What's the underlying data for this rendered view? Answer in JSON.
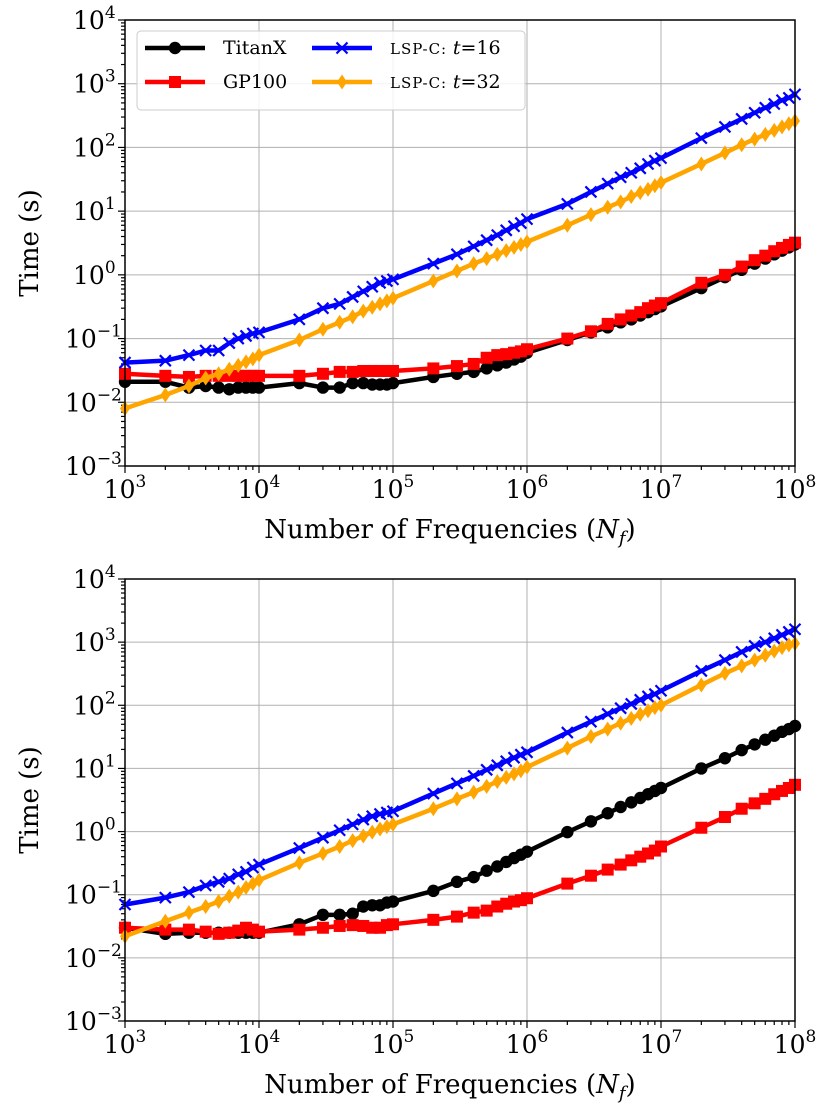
{
  "colors": {
    "titanx": "#000000",
    "gp100": "#ff0000",
    "lsp16": "#0000ff",
    "lsp32": "#ffa500"
  },
  "legend": {
    "titanx": "TitanX",
    "gp100": "GP100",
    "lsp16": "LSP-C: t=16",
    "lsp32": "LSP-C: t=32"
  },
  "chart_data": [
    {
      "type": "line",
      "title": "",
      "xlabel": "Number of Frequencies (N_f)",
      "ylabel": "Time (s)",
      "xscale": "log",
      "yscale": "log",
      "xlim": [
        1000,
        100000000
      ],
      "ylim": [
        0.001,
        10000
      ],
      "x_ticks": [
        "10^3",
        "10^4",
        "10^5",
        "10^6",
        "10^7",
        "10^8"
      ],
      "y_ticks": [
        "10^-3",
        "10^-2",
        "10^-1",
        "10^0",
        "10^1",
        "10^2",
        "10^3",
        "10^4"
      ],
      "grid": true,
      "legend_position": "top-left",
      "x": [
        1000,
        2000,
        3000,
        4000,
        5000,
        6000,
        7000,
        8000,
        9000,
        10000,
        20000,
        30000,
        40000,
        50000,
        60000,
        70000,
        80000,
        90000,
        100000,
        200000,
        300000,
        400000,
        500000,
        600000,
        700000,
        800000,
        900000,
        1000000,
        2000000,
        3000000,
        4000000,
        5000000,
        6000000,
        7000000,
        8000000,
        9000000,
        10000000,
        20000000,
        30000000,
        40000000,
        50000000,
        60000000,
        70000000,
        80000000,
        90000000,
        100000000
      ],
      "series": [
        {
          "name": "TitanX",
          "key": "titanx",
          "marker": "circle",
          "values": [
            0.021,
            0.021,
            0.017,
            0.018,
            0.017,
            0.016,
            0.017,
            0.017,
            0.017,
            0.017,
            0.02,
            0.017,
            0.017,
            0.02,
            0.02,
            0.019,
            0.019,
            0.019,
            0.02,
            0.025,
            0.028,
            0.03,
            0.034,
            0.038,
            0.042,
            0.047,
            0.052,
            0.06,
            0.095,
            0.125,
            0.15,
            0.18,
            0.2,
            0.23,
            0.26,
            0.29,
            0.32,
            0.62,
            0.92,
            1.2,
            1.5,
            1.8,
            2.1,
            2.4,
            2.7,
            3.0
          ]
        },
        {
          "name": "GP100",
          "key": "gp100",
          "marker": "square",
          "values": [
            0.028,
            0.026,
            0.025,
            0.026,
            0.026,
            0.026,
            0.026,
            0.026,
            0.026,
            0.026,
            0.026,
            0.028,
            0.03,
            0.03,
            0.031,
            0.031,
            0.031,
            0.031,
            0.031,
            0.034,
            0.037,
            0.04,
            0.05,
            0.055,
            0.057,
            0.06,
            0.063,
            0.068,
            0.1,
            0.13,
            0.17,
            0.2,
            0.23,
            0.26,
            0.3,
            0.33,
            0.36,
            0.75,
            1.0,
            1.35,
            1.7,
            2.0,
            2.35,
            2.65,
            2.95,
            3.2
          ]
        },
        {
          "name": "LSP-C: t=16",
          "key": "lsp16",
          "marker": "x",
          "values": [
            0.042,
            0.045,
            0.055,
            0.065,
            0.065,
            0.085,
            0.1,
            0.11,
            0.12,
            0.125,
            0.2,
            0.3,
            0.35,
            0.45,
            0.55,
            0.65,
            0.75,
            0.8,
            0.85,
            1.5,
            2.1,
            2.8,
            3.5,
            4.2,
            5.0,
            5.8,
            6.5,
            7.5,
            13,
            20,
            27,
            34,
            40,
            47,
            55,
            62,
            68,
            140,
            210,
            280,
            350,
            420,
            480,
            550,
            600,
            680
          ]
        },
        {
          "name": "LSP-C: t=32",
          "key": "lsp32",
          "marker": "diamond",
          "values": [
            0.008,
            0.013,
            0.018,
            0.024,
            0.028,
            0.033,
            0.038,
            0.043,
            0.048,
            0.055,
            0.095,
            0.14,
            0.18,
            0.22,
            0.27,
            0.31,
            0.35,
            0.39,
            0.43,
            0.8,
            1.15,
            1.5,
            1.8,
            2.1,
            2.4,
            2.7,
            3.0,
            3.3,
            6.0,
            8.8,
            11.5,
            14,
            17,
            19.5,
            22,
            25,
            28,
            55,
            82,
            110,
            135,
            160,
            185,
            210,
            235,
            260
          ]
        }
      ]
    },
    {
      "type": "line",
      "title": "",
      "xlabel": "Number of Frequencies (N_f)",
      "ylabel": "Time (s)",
      "xscale": "log",
      "yscale": "log",
      "xlim": [
        1000,
        100000000
      ],
      "ylim": [
        0.001,
        10000
      ],
      "x_ticks": [
        "10^3",
        "10^4",
        "10^5",
        "10^6",
        "10^7",
        "10^8"
      ],
      "y_ticks": [
        "10^-3",
        "10^-2",
        "10^-1",
        "10^0",
        "10^1",
        "10^2",
        "10^3",
        "10^4"
      ],
      "grid": true,
      "x": [
        1000,
        2000,
        3000,
        4000,
        5000,
        6000,
        7000,
        8000,
        9000,
        10000,
        20000,
        30000,
        40000,
        50000,
        60000,
        70000,
        80000,
        90000,
        100000,
        200000,
        300000,
        400000,
        500000,
        600000,
        700000,
        800000,
        900000,
        1000000,
        2000000,
        3000000,
        4000000,
        5000000,
        6000000,
        7000000,
        8000000,
        9000000,
        10000000,
        20000000,
        30000000,
        40000000,
        50000000,
        60000000,
        70000000,
        80000000,
        90000000,
        100000000
      ],
      "series": [
        {
          "name": "TitanX",
          "key": "titanx",
          "marker": "circle",
          "values": [
            0.03,
            0.024,
            0.025,
            0.025,
            0.025,
            0.025,
            0.025,
            0.025,
            0.025,
            0.025,
            0.034,
            0.048,
            0.048,
            0.05,
            0.065,
            0.068,
            0.068,
            0.075,
            0.078,
            0.115,
            0.16,
            0.19,
            0.24,
            0.28,
            0.33,
            0.38,
            0.43,
            0.48,
            0.98,
            1.45,
            1.95,
            2.45,
            2.9,
            3.4,
            3.9,
            4.4,
            4.9,
            10,
            14.5,
            19.5,
            24,
            28.5,
            33,
            38,
            42,
            47
          ]
        },
        {
          "name": "GP100",
          "key": "gp100",
          "marker": "square",
          "values": [
            0.03,
            0.028,
            0.028,
            0.026,
            0.024,
            0.025,
            0.027,
            0.03,
            0.028,
            0.026,
            0.028,
            0.03,
            0.032,
            0.033,
            0.032,
            0.03,
            0.03,
            0.033,
            0.034,
            0.04,
            0.045,
            0.052,
            0.056,
            0.065,
            0.072,
            0.078,
            0.082,
            0.088,
            0.15,
            0.2,
            0.25,
            0.3,
            0.35,
            0.4,
            0.45,
            0.5,
            0.58,
            1.15,
            1.7,
            2.3,
            2.8,
            3.3,
            3.9,
            4.4,
            4.9,
            5.5
          ]
        },
        {
          "name": "LSP-C: t=16",
          "key": "lsp16",
          "marker": "x",
          "values": [
            0.07,
            0.09,
            0.11,
            0.14,
            0.16,
            0.18,
            0.21,
            0.23,
            0.27,
            0.3,
            0.55,
            0.8,
            1.05,
            1.3,
            1.55,
            1.75,
            1.9,
            2.0,
            2.1,
            4.0,
            5.8,
            7.6,
            9.5,
            11.2,
            13,
            14.8,
            16.5,
            18,
            37,
            55,
            73,
            90,
            105,
            122,
            138,
            150,
            170,
            350,
            520,
            700,
            870,
            1000,
            1150,
            1300,
            1450,
            1600
          ]
        },
        {
          "name": "LSP-C: t=32",
          "key": "lsp32",
          "marker": "diamond",
          "values": [
            0.022,
            0.038,
            0.052,
            0.065,
            0.078,
            0.095,
            0.11,
            0.13,
            0.15,
            0.17,
            0.32,
            0.45,
            0.58,
            0.72,
            0.85,
            0.98,
            1.1,
            1.2,
            1.3,
            2.3,
            3.3,
            4.2,
            5.2,
            6.2,
            7.2,
            8.2,
            9.2,
            10.5,
            21,
            32,
            42,
            52,
            62,
            72,
            82,
            92,
            100,
            210,
            320,
            420,
            520,
            620,
            720,
            820,
            900,
            950
          ]
        }
      ]
    }
  ]
}
